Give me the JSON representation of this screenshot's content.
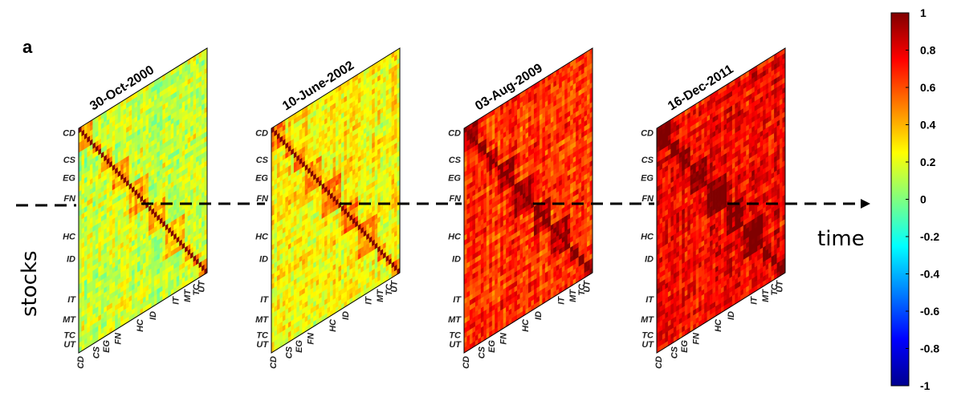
{
  "panel_label": "a",
  "row_axis_label": "stocks",
  "time_axis_label": "time",
  "chart_data": {
    "type": "heatmap",
    "description_kind": "correlation matrices of stocks grouped by sector",
    "sectors": [
      "CD",
      "CS",
      "EG",
      "FN",
      "HC",
      "ID",
      "IT",
      "MT",
      "TC",
      "UT"
    ],
    "snapshots": [
      {
        "date": "30-Oct-2000",
        "mean_correlation": 0.15
      },
      {
        "date": "10-June-2002",
        "mean_correlation": 0.25
      },
      {
        "date": "03-Aug-2009",
        "mean_correlation": 0.65
      },
      {
        "date": "16-Dec-2011",
        "mean_correlation": 0.75
      }
    ],
    "colorbar": {
      "colormap": "jet",
      "range": [
        -1,
        1
      ],
      "ticks": [
        "1",
        "0.8",
        "0.6",
        "0.4",
        "0.2",
        "0",
        "-0.2",
        "-0.4",
        "-0.6",
        "-0.8",
        "-1"
      ]
    }
  }
}
